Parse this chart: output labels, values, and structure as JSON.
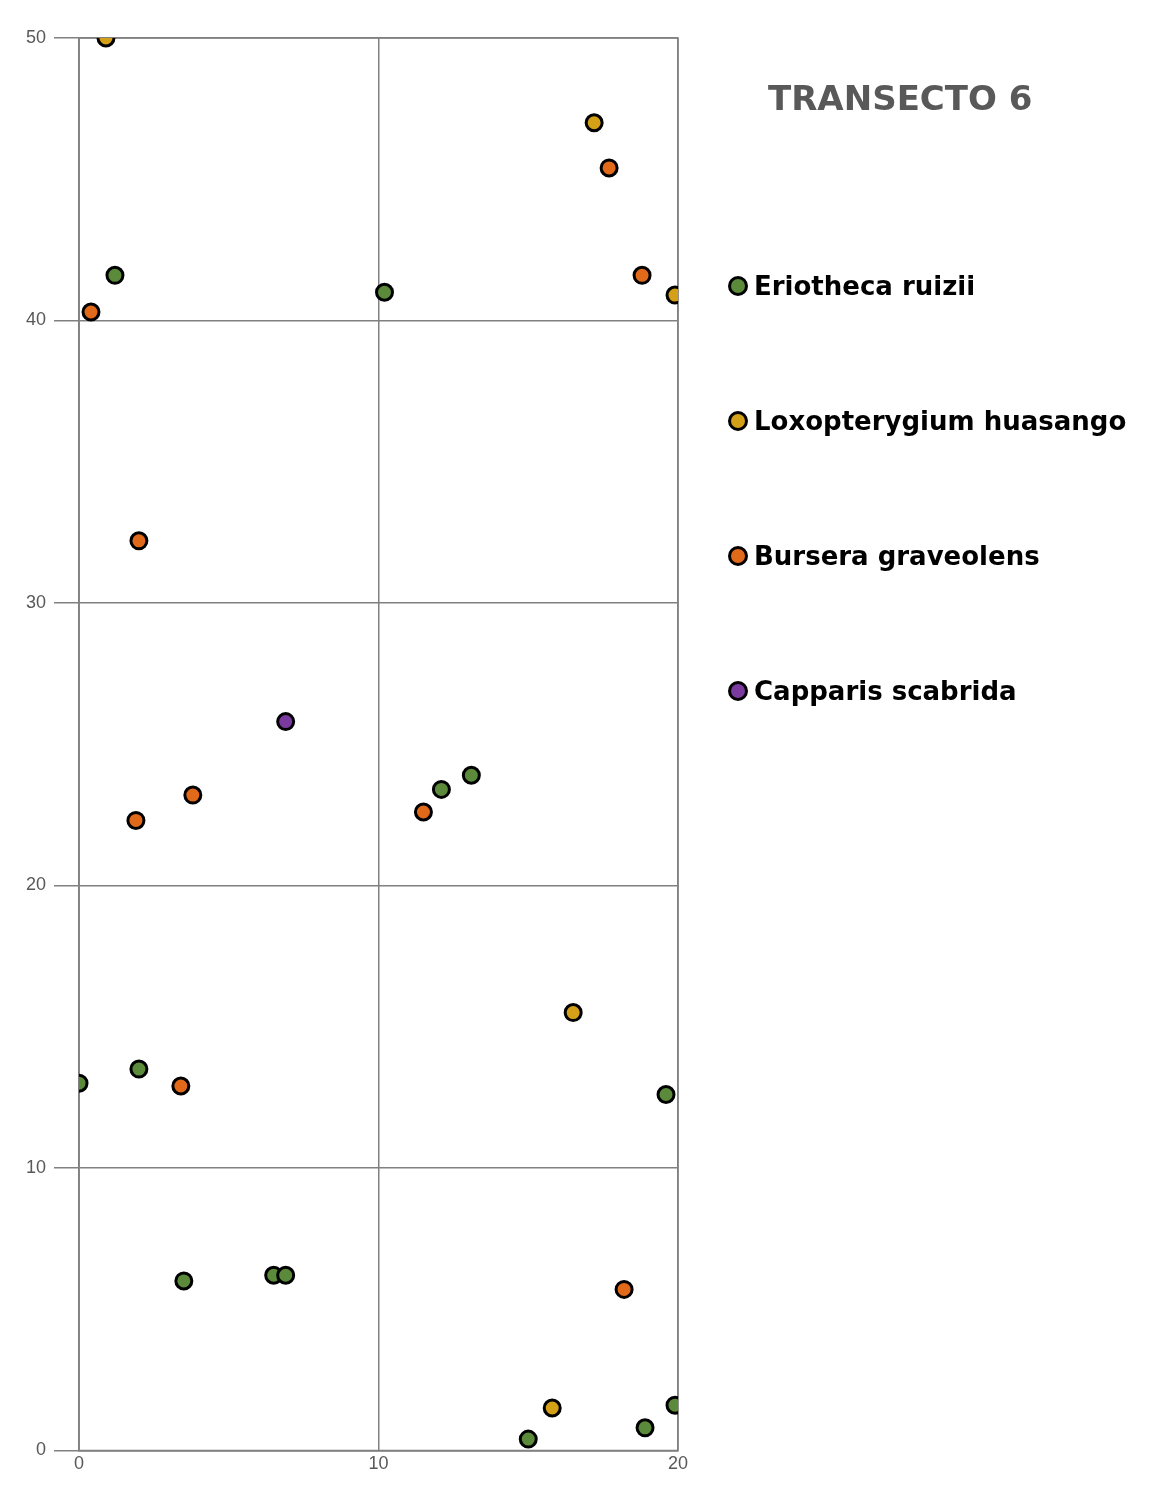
{
  "chart_data": {
    "type": "scatter",
    "title": "TRANSECTO 6",
    "xlim": [
      0,
      20
    ],
    "xticks": [
      0,
      10,
      20
    ],
    "ylim": [
      0,
      50
    ],
    "yticks": [
      0,
      10,
      20,
      30,
      40,
      50
    ],
    "grid": true,
    "legend": "right",
    "marker": "circle",
    "series": [
      {
        "name": "Eriotheca ruizii",
        "color": "#5a8a3a",
        "x": [
          1.2,
          10.2,
          12.1,
          13.1,
          0,
          2,
          19.6,
          3.5,
          6.5,
          6.9,
          15,
          18.9,
          19.9
        ],
        "values": [
          41.6,
          41,
          23.4,
          23.9,
          13,
          13.5,
          12.6,
          6,
          6.2,
          6.2,
          0.4,
          0.8,
          1.6
        ]
      },
      {
        "name": "Loxopterygium huasango",
        "color": "#d4a017",
        "x": [
          0.9,
          17.2,
          19.9,
          16.5,
          15.8
        ],
        "values": [
          50,
          47,
          40.9,
          15.5,
          1.5
        ]
      },
      {
        "name": "Bursera graveolens",
        "color": "#e06a1a",
        "x": [
          17.7,
          18.8,
          0.4,
          2,
          3.8,
          1.9,
          11.5,
          3.4,
          18.2
        ],
        "values": [
          45.4,
          41.6,
          40.3,
          32.2,
          23.2,
          22.3,
          22.6,
          12.9,
          5.7
        ]
      },
      {
        "name": "Capparis scabrida",
        "color": "#7a3aa0",
        "x": [
          6.9
        ],
        "values": [
          25.8
        ]
      }
    ]
  }
}
